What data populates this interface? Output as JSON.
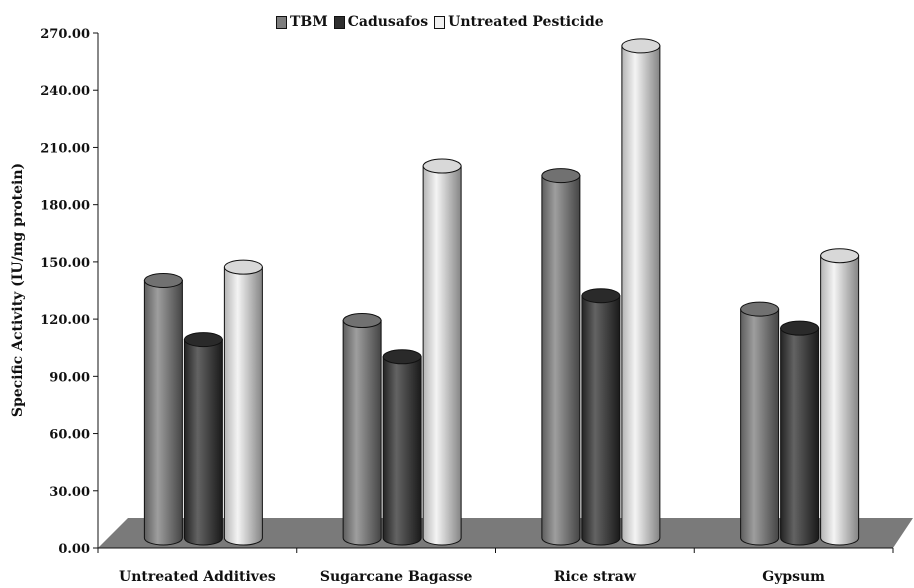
{
  "chart_data": {
    "type": "bar",
    "title": "",
    "xlabel": "",
    "ylabel": "Specific Activity (IU/mg protein)",
    "categories": [
      "Untreated Additives",
      "Sugarcane Bagasse",
      "Rice straw",
      "Gypsum"
    ],
    "series": [
      {
        "name": "TBM",
        "values": [
          135,
          114,
          190,
          120
        ],
        "color": "#7d7d7d"
      },
      {
        "name": "Cadusafos",
        "values": [
          104,
          95,
          127,
          110
        ],
        "color": "#2f2f2f"
      },
      {
        "name": "Untreated Pesticide",
        "values": [
          142,
          195,
          258,
          148
        ],
        "color": "#f0f0f0"
      }
    ],
    "ylim": [
      0,
      270
    ],
    "yticks": [
      "0.00",
      "30.00",
      "60.00",
      "90.00",
      "120.00",
      "150.00",
      "180.00",
      "210.00",
      "240.00",
      "270.00"
    ],
    "ytick_values": [
      0,
      30,
      60,
      90,
      120,
      150,
      180,
      210,
      240,
      270
    ],
    "grid": false,
    "legend_position": "top-center",
    "style": "3d-cylinder"
  }
}
